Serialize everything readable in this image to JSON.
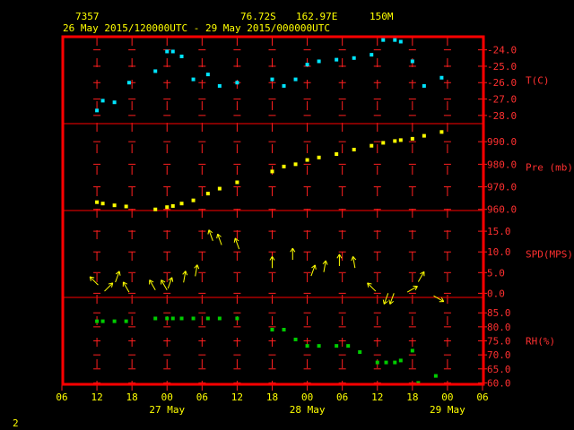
{
  "header": {
    "station_id": "7357",
    "lat": "76.72S",
    "lon": "162.97E",
    "elev": "150M",
    "time_range": "26 May 2015/120000UTC - 29 May 2015/000000UTC"
  },
  "footer_mark": "2",
  "chart_data": {
    "type": "scatter",
    "title": "",
    "x_tick_labels": [
      "06",
      "12",
      "18",
      "00",
      "06",
      "12",
      "18",
      "00",
      "06",
      "12",
      "18",
      "00",
      "06"
    ],
    "x_date_labels": [
      {
        "label": "27 May",
        "at_tick": 3
      },
      {
        "label": "28 May",
        "at_tick": 7
      },
      {
        "label": "29 May",
        "at_tick": 11
      }
    ],
    "x_range_hours": [
      0,
      72
    ],
    "panels": [
      {
        "name": "T(C)",
        "ylim": [
          -28.5,
          -23.2
        ],
        "ticks": [
          -24.0,
          -25.0,
          -26.0,
          -27.0,
          -28.0
        ],
        "tick_labels": [
          "-24.0",
          "-25.0",
          "-26.0",
          "-27.0",
          "-28.0"
        ],
        "color": "#00e5ff",
        "points": [
          [
            6,
            -27.7
          ],
          [
            7,
            -27.1
          ],
          [
            9,
            -27.2
          ],
          [
            11.5,
            -26.0
          ],
          [
            16,
            -25.3
          ],
          [
            18,
            -24.1
          ],
          [
            19,
            -24.1
          ],
          [
            20.5,
            -24.4
          ],
          [
            22.5,
            -25.8
          ],
          [
            25,
            -25.5
          ],
          [
            27,
            -26.2
          ],
          [
            30,
            -26.0
          ],
          [
            36,
            -25.8
          ],
          [
            38,
            -26.2
          ],
          [
            40,
            -25.8
          ],
          [
            42,
            -24.9
          ],
          [
            44,
            -24.7
          ],
          [
            47,
            -24.6
          ],
          [
            50,
            -24.5
          ],
          [
            53,
            -24.3
          ],
          [
            55,
            -23.4
          ],
          [
            57,
            -23.4
          ],
          [
            58,
            -23.5
          ],
          [
            60,
            -24.7
          ],
          [
            62,
            -26.2
          ],
          [
            65,
            -25.7
          ]
        ]
      },
      {
        "name": "Pre (mb)",
        "ylim": [
          959.5,
          998
        ],
        "ticks": [
          960.0,
          970.0,
          980.0,
          990.0
        ],
        "tick_labels": [
          "960.0",
          "970.0",
          "980.0",
          "990.0"
        ],
        "color": "#ffff00",
        "points": [
          [
            6,
            963.2
          ],
          [
            7,
            962.6
          ],
          [
            9,
            961.8
          ],
          [
            11,
            961.3
          ],
          [
            16,
            960.0
          ],
          [
            18,
            961.0
          ],
          [
            19,
            961.5
          ],
          [
            20.5,
            962.6
          ],
          [
            22.5,
            964.0
          ],
          [
            25,
            967.0
          ],
          [
            27,
            969.2
          ],
          [
            30,
            972.0
          ],
          [
            36,
            976.8
          ],
          [
            38,
            979.0
          ],
          [
            40,
            980.0
          ],
          [
            42,
            981.9
          ],
          [
            44,
            983.0
          ],
          [
            47,
            984.5
          ],
          [
            50,
            986.5
          ],
          [
            53,
            988.2
          ],
          [
            55,
            989.5
          ],
          [
            57,
            990.3
          ],
          [
            58,
            990.7
          ],
          [
            60,
            991.3
          ],
          [
            62,
            992.6
          ],
          [
            65,
            994.3
          ]
        ]
      },
      {
        "name": "SPD(MPS)",
        "ylim": [
          -1,
          20
        ],
        "ticks": [
          0.0,
          5.0,
          10.0,
          15.0
        ],
        "tick_labels": [
          "0.0",
          "5.0",
          "10.0",
          "15.0"
        ],
        "color": "#ffff00",
        "wind_arrows": [
          {
            "x": 5.5,
            "speed": 3,
            "dir_deg": 315
          },
          {
            "x": 8,
            "speed": 1.5,
            "dir_deg": 45
          },
          {
            "x": 9.5,
            "speed": 4,
            "dir_deg": 20
          },
          {
            "x": 11,
            "speed": 1.5,
            "dir_deg": 330
          },
          {
            "x": 15.5,
            "speed": 2,
            "dir_deg": 330
          },
          {
            "x": 17.5,
            "speed": 2,
            "dir_deg": 330
          },
          {
            "x": 18.5,
            "speed": 2.5,
            "dir_deg": 20
          },
          {
            "x": 21,
            "speed": 4,
            "dir_deg": 10
          },
          {
            "x": 23,
            "speed": 5.5,
            "dir_deg": 10
          },
          {
            "x": 25.5,
            "speed": 14,
            "dir_deg": 340
          },
          {
            "x": 27,
            "speed": 13,
            "dir_deg": 340
          },
          {
            "x": 30,
            "speed": 12,
            "dir_deg": 340
          },
          {
            "x": 36,
            "speed": 7.5,
            "dir_deg": 0
          },
          {
            "x": 39.5,
            "speed": 9.5,
            "dir_deg": 0
          },
          {
            "x": 43,
            "speed": 5.5,
            "dir_deg": 20
          },
          {
            "x": 45,
            "speed": 6.5,
            "dir_deg": 10
          },
          {
            "x": 47.5,
            "speed": 8,
            "dir_deg": 0
          },
          {
            "x": 50,
            "speed": 7.5,
            "dir_deg": 350
          },
          {
            "x": 53,
            "speed": 1.5,
            "dir_deg": 315
          },
          {
            "x": 55.5,
            "speed": -1,
            "dir_deg": 200
          },
          {
            "x": 56.5,
            "speed": -1,
            "dir_deg": 200
          },
          {
            "x": 60,
            "speed": 1,
            "dir_deg": 60
          },
          {
            "x": 61.5,
            "speed": 4,
            "dir_deg": 30
          },
          {
            "x": 64.5,
            "speed": -0.5,
            "dir_deg": 120
          }
        ]
      },
      {
        "name": "RH(%)",
        "ylim": [
          59.5,
          90.5
        ],
        "ticks": [
          60.0,
          65.0,
          70.0,
          75.0,
          80.0,
          85.0
        ],
        "tick_labels": [
          "60.0",
          "65.0",
          "70.0",
          "75.0",
          "80.0",
          "85.0"
        ],
        "color": "#00cc00",
        "points": [
          [
            6,
            82.0
          ],
          [
            7,
            82.0
          ],
          [
            9,
            82.0
          ],
          [
            11,
            82.0
          ],
          [
            16,
            83.0
          ],
          [
            18,
            83.0
          ],
          [
            19,
            83.0
          ],
          [
            20.5,
            83.0
          ],
          [
            22.5,
            83.0
          ],
          [
            25,
            83.0
          ],
          [
            27,
            83.0
          ],
          [
            30,
            83.0
          ],
          [
            36,
            79.0
          ],
          [
            38,
            79.0
          ],
          [
            40,
            75.5
          ],
          [
            42,
            73.2
          ],
          [
            44,
            73.2
          ],
          [
            47,
            73.2
          ],
          [
            49,
            73.2
          ],
          [
            51,
            71.0
          ],
          [
            54,
            67.3
          ],
          [
            55.5,
            67.3
          ],
          [
            57,
            67.3
          ],
          [
            58,
            68.0
          ],
          [
            60,
            71.5
          ],
          [
            61,
            60.0
          ],
          [
            64,
            62.5
          ]
        ]
      }
    ]
  }
}
